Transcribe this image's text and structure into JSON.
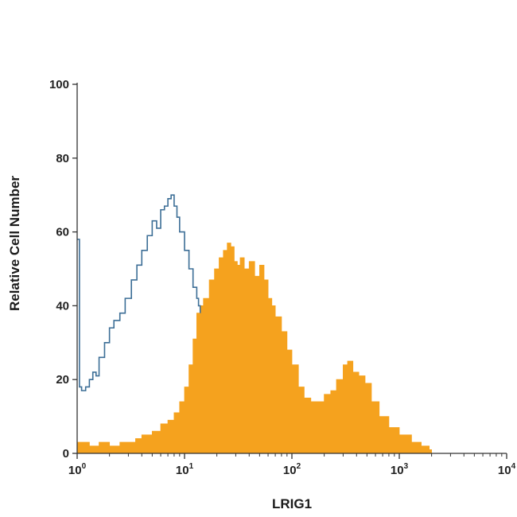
{
  "chart_data": {
    "type": "area",
    "xlabel": "LRIG1",
    "ylabel": "Relative Cell Number",
    "x_scale": "log",
    "xlim": [
      1,
      10000
    ],
    "ylim": [
      0,
      100
    ],
    "x_ticks": [
      {
        "value": 1,
        "base": "10",
        "exp": "0"
      },
      {
        "value": 10,
        "base": "10",
        "exp": "1"
      },
      {
        "value": 100,
        "base": "10",
        "exp": "2"
      },
      {
        "value": 1000,
        "base": "10",
        "exp": "3"
      },
      {
        "value": 10000,
        "base": "10",
        "exp": "4"
      }
    ],
    "y_ticks": [
      "0",
      "20",
      "40",
      "60",
      "80",
      "100"
    ],
    "grid": false,
    "series": [
      {
        "style": "outline",
        "color": "#3c6e96",
        "x": [
          1.0,
          1.05,
          1.1,
          1.2,
          1.3,
          1.4,
          1.5,
          1.6,
          1.8,
          2.0,
          2.2,
          2.5,
          2.8,
          3.2,
          3.6,
          4.0,
          4.5,
          5.0,
          5.5,
          6.0,
          6.5,
          7.0,
          7.5,
          8.0,
          8.5,
          9.0,
          10.0,
          11.0,
          12.0,
          13.0,
          13.5,
          14.0
        ],
        "y": [
          58,
          18,
          17,
          18,
          20,
          22,
          21,
          26,
          30,
          34,
          36,
          38,
          42,
          47,
          51,
          55,
          59,
          63,
          61,
          66,
          67,
          69,
          70,
          67,
          64,
          60,
          55,
          50,
          45,
          42,
          40,
          38
        ]
      },
      {
        "style": "filled",
        "color": "#f5a21e",
        "x": [
          1.0,
          1.3,
          1.6,
          2.0,
          2.5,
          3.0,
          3.5,
          4.0,
          5.0,
          6.0,
          7.0,
          8.0,
          9.0,
          10.0,
          11.0,
          12.0,
          13.0,
          14.0,
          15.0,
          17.0,
          19.0,
          21.0,
          23.0,
          25.0,
          27.0,
          29.0,
          31.0,
          33.0,
          36.0,
          40.0,
          45.0,
          50.0,
          55.0,
          60.0,
          65.0,
          70.0,
          80.0,
          90.0,
          100.0,
          115.0,
          130.0,
          150.0,
          170.0,
          200.0,
          230.0,
          260.0,
          300.0,
          330.0,
          370.0,
          420.0,
          480.0,
          550.0,
          650.0,
          800.0,
          1000.0,
          1300.0,
          1600.0,
          1900.0,
          2000.0
        ],
        "y": [
          3,
          2,
          3,
          2,
          3,
          3,
          4,
          5,
          6,
          8,
          9,
          11,
          14,
          18,
          24,
          31,
          38,
          40,
          42,
          47,
          50,
          53,
          55,
          57,
          56,
          52,
          51,
          53,
          50,
          52,
          48,
          51,
          47,
          42,
          40,
          37,
          33,
          28,
          24,
          18,
          15,
          14,
          14,
          16,
          17,
          20,
          24,
          25,
          22,
          21,
          19,
          14,
          10,
          7,
          5,
          3,
          2,
          1,
          0
        ]
      }
    ]
  }
}
